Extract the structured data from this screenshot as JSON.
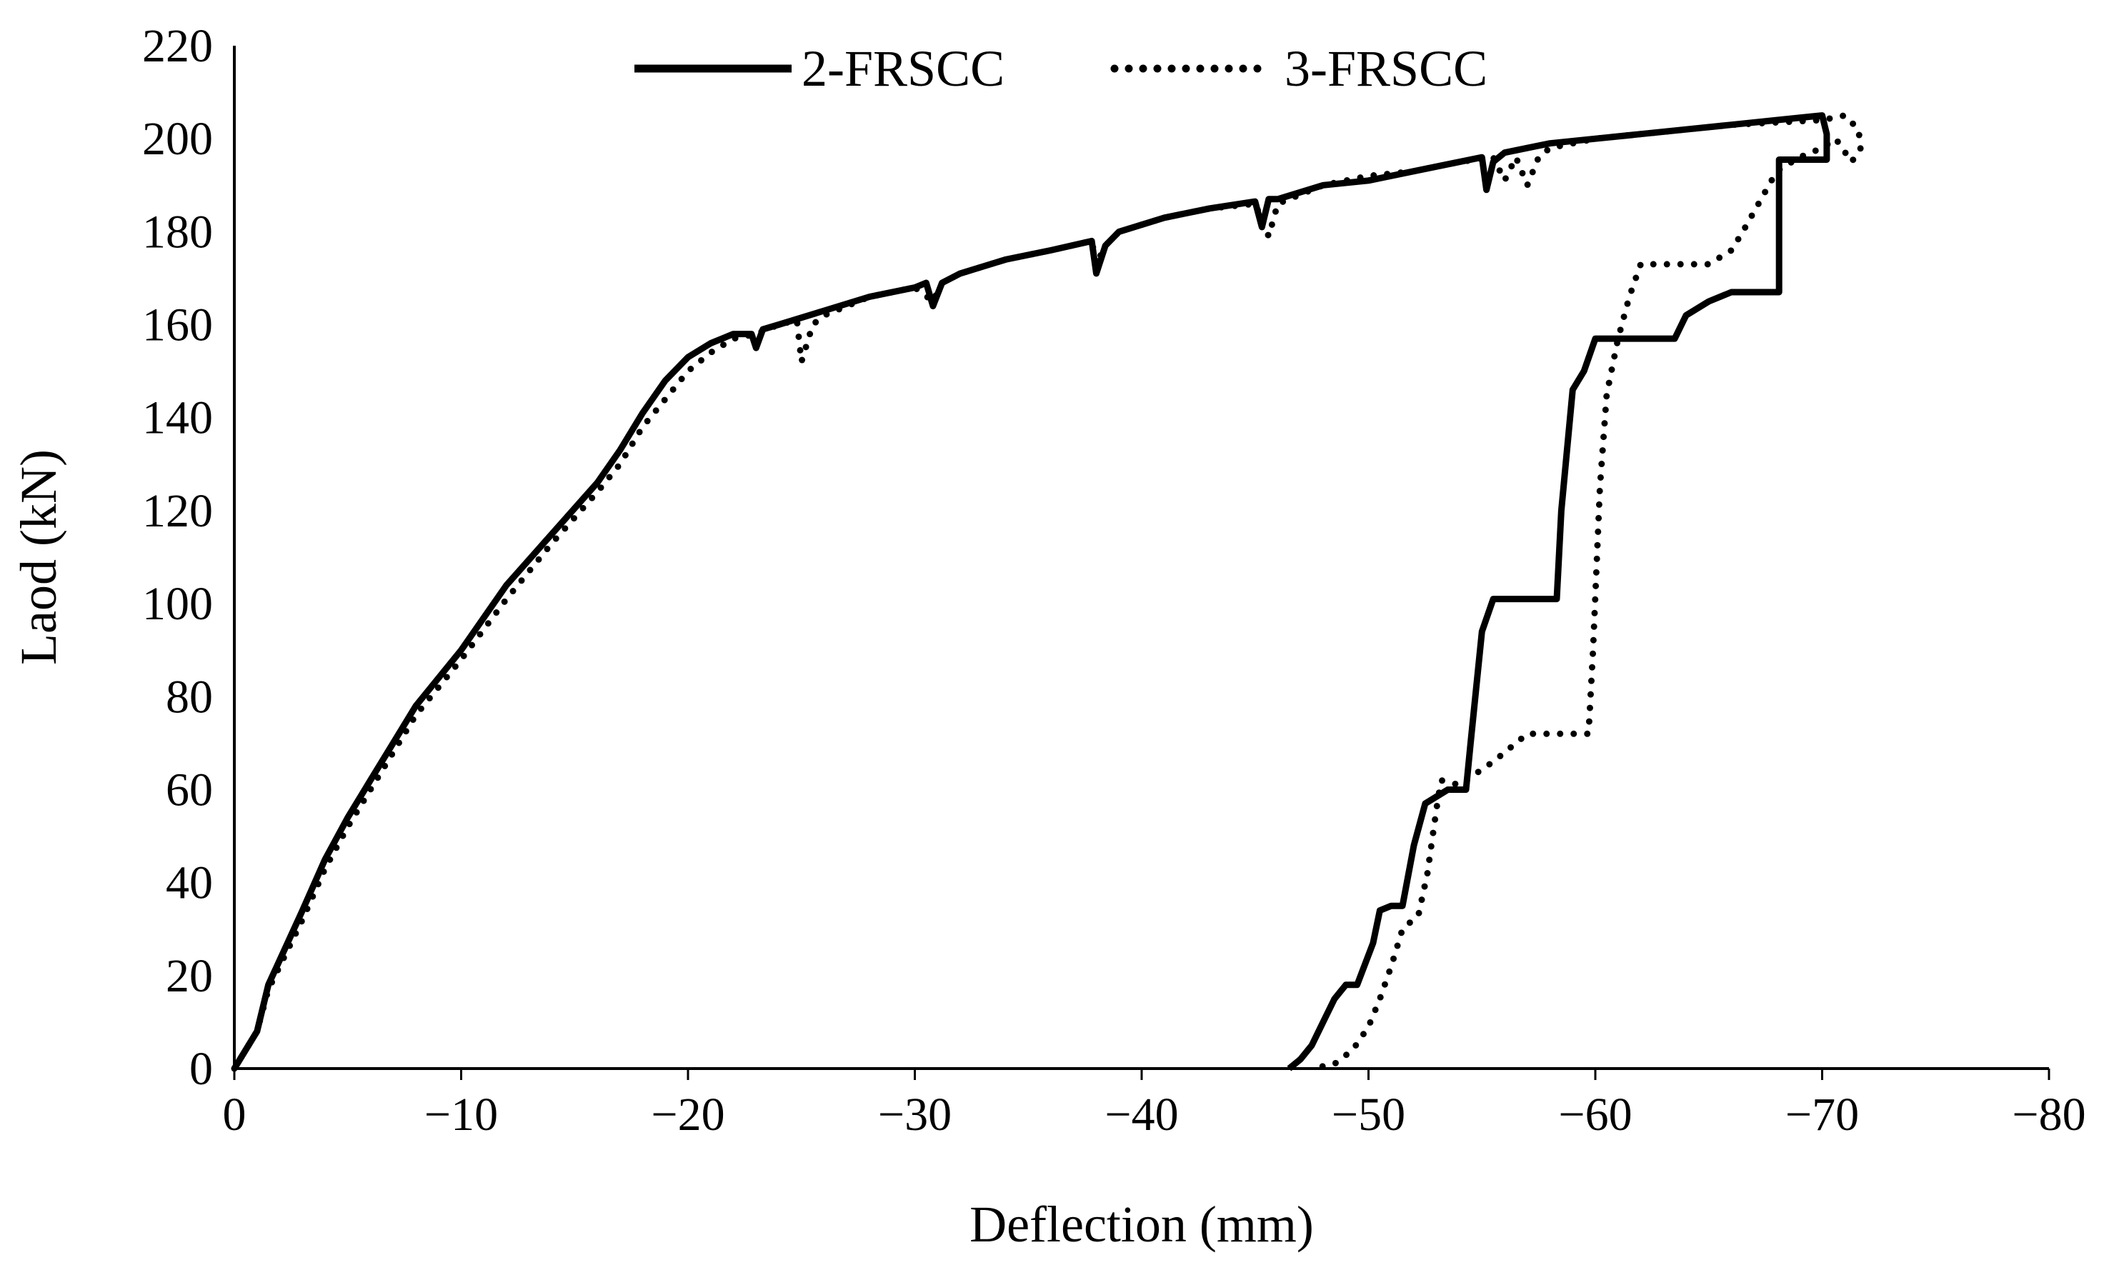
{
  "chart_data": {
    "type": "line",
    "title": "",
    "xlabel": "Deflection (mm)",
    "ylabel": "Laod (kN)",
    "xlim": [
      0,
      -80
    ],
    "ylim": [
      0,
      220
    ],
    "xticks": [
      0,
      -10,
      -20,
      -30,
      -40,
      -50,
      -60,
      -70,
      -80
    ],
    "xtick_labels": [
      "0",
      "−10",
      "−20",
      "−30",
      "−40",
      "−50",
      "−60",
      "−70",
      "−80"
    ],
    "yticks": [
      0,
      20,
      40,
      60,
      80,
      100,
      120,
      140,
      160,
      180,
      200,
      220
    ],
    "ytick_labels": [
      "0",
      "20",
      "40",
      "60",
      "80",
      "100",
      "120",
      "140",
      "160",
      "180",
      "200",
      "220"
    ],
    "grid": false,
    "legend_position": "top-center",
    "colors": {
      "line": "#000000",
      "axis": "#000000"
    },
    "series": [
      {
        "name": "2-FRSCC",
        "style": "solid",
        "points": [
          [
            0,
            0
          ],
          [
            -1,
            8
          ],
          [
            -1.5,
            18
          ],
          [
            -3,
            34
          ],
          [
            -4,
            45
          ],
          [
            -5,
            54
          ],
          [
            -6,
            62
          ],
          [
            -7,
            70
          ],
          [
            -8,
            78
          ],
          [
            -10,
            90
          ],
          [
            -12,
            104
          ],
          [
            -14,
            115
          ],
          [
            -16,
            126
          ],
          [
            -17,
            133
          ],
          [
            -18,
            141
          ],
          [
            -19,
            148
          ],
          [
            -20,
            153
          ],
          [
            -21,
            156
          ],
          [
            -22,
            158
          ],
          [
            -22.8,
            158
          ],
          [
            -23,
            155
          ],
          [
            -23.3,
            159
          ],
          [
            -24,
            160
          ],
          [
            -26,
            163
          ],
          [
            -28,
            166
          ],
          [
            -30,
            168
          ],
          [
            -30.5,
            169
          ],
          [
            -30.8,
            164
          ],
          [
            -31.2,
            169
          ],
          [
            -32,
            171
          ],
          [
            -34,
            174
          ],
          [
            -36,
            176
          ],
          [
            -37.8,
            178
          ],
          [
            -38,
            171
          ],
          [
            -38.4,
            177
          ],
          [
            -39,
            180
          ],
          [
            -41,
            183
          ],
          [
            -43,
            185
          ],
          [
            -45,
            186.5
          ],
          [
            -45.3,
            181
          ],
          [
            -45.6,
            187
          ],
          [
            -46,
            187
          ],
          [
            -48,
            190
          ],
          [
            -50,
            191
          ],
          [
            -52,
            193
          ],
          [
            -54,
            195
          ],
          [
            -55,
            196
          ],
          [
            -55.2,
            189
          ],
          [
            -55.5,
            195
          ],
          [
            -56,
            197
          ],
          [
            -58,
            199
          ],
          [
            -60,
            200
          ],
          [
            -62,
            201
          ],
          [
            -64,
            202
          ],
          [
            -66,
            203
          ],
          [
            -68,
            204
          ],
          [
            -70,
            205
          ],
          [
            -70.2,
            201
          ],
          [
            -70.2,
            195.5
          ],
          [
            -68.1,
            195.5
          ],
          [
            -68.1,
            167
          ],
          [
            -66,
            167
          ],
          [
            -65,
            165
          ],
          [
            -64,
            162
          ],
          [
            -63.5,
            157
          ],
          [
            -61.5,
            157
          ],
          [
            -60,
            157
          ],
          [
            -59.5,
            150
          ],
          [
            -59,
            146
          ],
          [
            -58.5,
            120
          ],
          [
            -58.3,
            101
          ],
          [
            -56,
            101
          ],
          [
            -55.5,
            101
          ],
          [
            -55,
            94
          ],
          [
            -54.5,
            70
          ],
          [
            -54.3,
            60
          ],
          [
            -53.5,
            60
          ],
          [
            -52.5,
            57
          ],
          [
            -52,
            48
          ],
          [
            -51.5,
            35
          ],
          [
            -51,
            35
          ],
          [
            -50.5,
            34
          ],
          [
            -50.2,
            27
          ],
          [
            -49.5,
            18
          ],
          [
            -49,
            18
          ],
          [
            -48.5,
            15
          ],
          [
            -48,
            10
          ],
          [
            -47.5,
            5
          ],
          [
            -47,
            2
          ],
          [
            -46.5,
            0
          ]
        ]
      },
      {
        "name": "3-FRSCC",
        "style": "dotted",
        "points": [
          [
            0,
            0
          ],
          [
            -1,
            8
          ],
          [
            -1.5,
            17
          ],
          [
            -3,
            32
          ],
          [
            -4,
            43
          ],
          [
            -5,
            52
          ],
          [
            -6,
            60
          ],
          [
            -7,
            68
          ],
          [
            -8,
            76
          ],
          [
            -10,
            88
          ],
          [
            -12,
            101
          ],
          [
            -14,
            113
          ],
          [
            -16,
            124
          ],
          [
            -17,
            130
          ],
          [
            -18,
            138
          ],
          [
            -19,
            144
          ],
          [
            -20,
            150
          ],
          [
            -21,
            154
          ],
          [
            -22,
            157
          ],
          [
            -23,
            158
          ],
          [
            -24,
            160
          ],
          [
            -24.8,
            161
          ],
          [
            -25,
            152
          ],
          [
            -25.5,
            160
          ],
          [
            -26,
            162
          ],
          [
            -28,
            166
          ],
          [
            -30,
            168
          ],
          [
            -30.8,
            165
          ],
          [
            -31.2,
            169
          ],
          [
            -32,
            171
          ],
          [
            -34,
            174
          ],
          [
            -36,
            176
          ],
          [
            -37.8,
            178
          ],
          [
            -38,
            173
          ],
          [
            -38.4,
            177
          ],
          [
            -39,
            180
          ],
          [
            -41,
            183
          ],
          [
            -43,
            185
          ],
          [
            -45,
            186
          ],
          [
            -45.6,
            179
          ],
          [
            -46,
            186
          ],
          [
            -48,
            190
          ],
          [
            -50,
            192
          ],
          [
            -52,
            193
          ],
          [
            -54,
            195
          ],
          [
            -55.5,
            196
          ],
          [
            -56,
            191
          ],
          [
            -56.5,
            196
          ],
          [
            -57,
            190
          ],
          [
            -57.5,
            196
          ],
          [
            -58,
            198
          ],
          [
            -60,
            200
          ],
          [
            -62,
            201
          ],
          [
            -64,
            202
          ],
          [
            -66,
            203
          ],
          [
            -68,
            203.5
          ],
          [
            -70,
            204
          ],
          [
            -71,
            205
          ],
          [
            -71.6,
            202
          ],
          [
            -71.7,
            198
          ],
          [
            -71.3,
            195
          ],
          [
            -70.6,
            200
          ],
          [
            -70,
            198
          ],
          [
            -69,
            196
          ],
          [
            -68,
            193
          ],
          [
            -66.5,
            180
          ],
          [
            -66,
            176
          ],
          [
            -65,
            173
          ],
          [
            -63,
            173
          ],
          [
            -62,
            173
          ],
          [
            -61.5,
            166
          ],
          [
            -61,
            157
          ],
          [
            -60.5,
            145
          ],
          [
            -60.2,
            125
          ],
          [
            -59.9,
            90
          ],
          [
            -59.7,
            72
          ],
          [
            -57,
            72
          ],
          [
            -55.5,
            66
          ],
          [
            -54,
            61
          ],
          [
            -53.2,
            62
          ],
          [
            -53,
            56
          ],
          [
            -52.6,
            42
          ],
          [
            -52.2,
            33
          ],
          [
            -51.5,
            30
          ],
          [
            -51,
            22
          ],
          [
            -50.5,
            15
          ],
          [
            -50,
            9
          ],
          [
            -49.3,
            4
          ],
          [
            -48.5,
            1
          ],
          [
            -47.5,
            0
          ]
        ]
      }
    ]
  }
}
